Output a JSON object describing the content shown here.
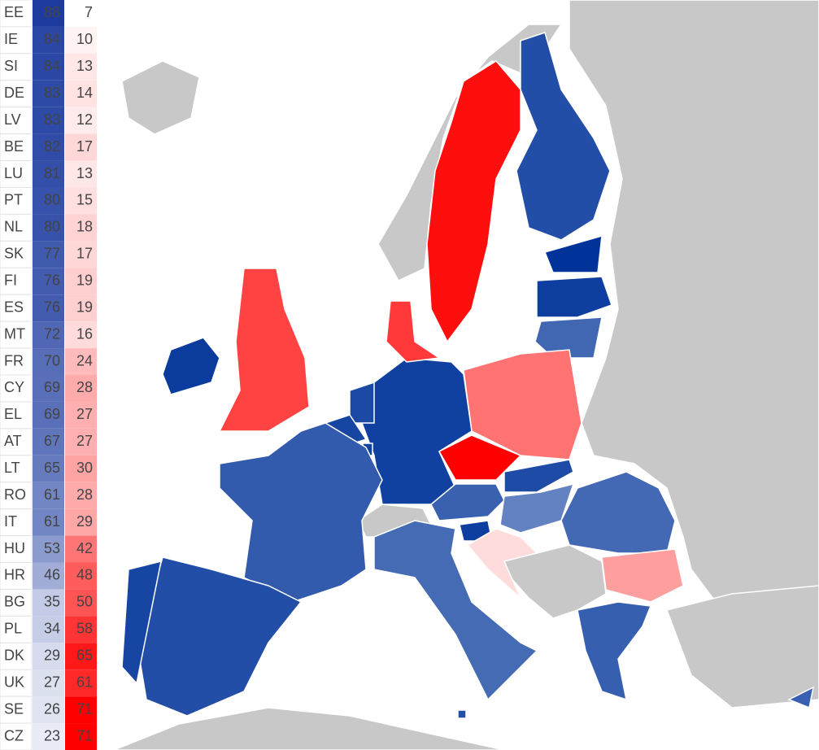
{
  "rows": [
    [
      "EE",
      88,
      7
    ],
    [
      "IE",
      84,
      10
    ],
    [
      "SI",
      84,
      13
    ],
    [
      "DE",
      83,
      14
    ],
    [
      "LV",
      83,
      12
    ],
    [
      "BE",
      82,
      17
    ],
    [
      "LU",
      81,
      13
    ],
    [
      "PT",
      80,
      15
    ],
    [
      "NL",
      80,
      18
    ],
    [
      "SK",
      77,
      17
    ],
    [
      "FI",
      76,
      19
    ],
    [
      "ES",
      76,
      19
    ],
    [
      "MT",
      72,
      16
    ],
    [
      "FR",
      70,
      24
    ],
    [
      "CY",
      69,
      28
    ],
    [
      "EL",
      69,
      27
    ],
    [
      "AT",
      67,
      27
    ],
    [
      "LT",
      65,
      30
    ],
    [
      "RO",
      61,
      28
    ],
    [
      "IT",
      61,
      29
    ],
    [
      "HU",
      53,
      42
    ],
    [
      "HR",
      46,
      48
    ],
    [
      "BG",
      35,
      50
    ],
    [
      "PL",
      34,
      58
    ],
    [
      "DK",
      29,
      65
    ],
    [
      "UK",
      27,
      61
    ],
    [
      "SE",
      26,
      71
    ],
    [
      "CZ",
      23,
      71
    ]
  ]
}
